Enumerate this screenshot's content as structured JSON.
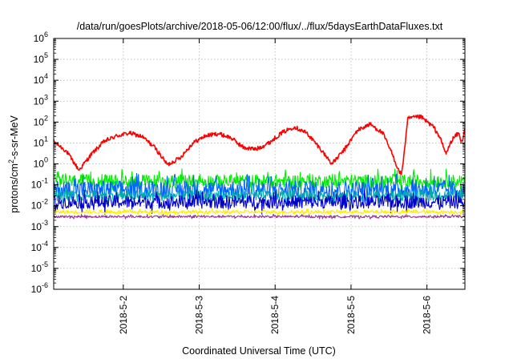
{
  "chart_data": {
    "type": "line",
    "title": "/data/run/goesPlots/archive/2018-05-06/12:00/flux/../flux/5daysEarthDataFluxes.txt",
    "xlabel": "Coordinated Universal Time (UTC)",
    "ylabel_parts": {
      "pre": "protons/cm",
      "sup": "2",
      "post": "-s-sr-MeV"
    },
    "y_scale": "log",
    "ylim": [
      1e-06,
      1000000.0
    ],
    "y_ticks": [
      {
        "value": 1e-06,
        "base": "10",
        "exp": "-6"
      },
      {
        "value": 1e-05,
        "base": "10",
        "exp": "-5"
      },
      {
        "value": 0.0001,
        "base": "10",
        "exp": "-4"
      },
      {
        "value": 0.001,
        "base": "10",
        "exp": "-3"
      },
      {
        "value": 0.01,
        "base": "10",
        "exp": "-2"
      },
      {
        "value": 0.1,
        "base": "10",
        "exp": "-1"
      },
      {
        "value": 1,
        "base": "10",
        "exp": "0"
      },
      {
        "value": 10,
        "base": "10",
        "exp": "1"
      },
      {
        "value": 100,
        "base": "10",
        "exp": "2"
      },
      {
        "value": 1000,
        "base": "10",
        "exp": "3"
      },
      {
        "value": 10000,
        "base": "10",
        "exp": "4"
      },
      {
        "value": 100000,
        "base": "10",
        "exp": "5"
      },
      {
        "value": 1000000,
        "base": "10",
        "exp": "6"
      }
    ],
    "xlim": [
      "2018-05-01 02:00",
      "2018-05-06 12:00"
    ],
    "x_ticks": [
      {
        "value": "2018-05-02 00:00",
        "label": "2018-5-2"
      },
      {
        "value": "2018-05-03 00:00",
        "label": "2018-5-3"
      },
      {
        "value": "2018-05-04 00:00",
        "label": "2018-5-4"
      },
      {
        "value": "2018-05-05 00:00",
        "label": "2018-5-5"
      },
      {
        "value": "2018-05-06 00:00",
        "label": "2018-5-6"
      }
    ],
    "grid": true,
    "series": [
      {
        "color": "#ff0000",
        "style": "smooth",
        "x": [
          "2018-05-01 02:00",
          "2018-05-01 06:00",
          "2018-05-01 10:00",
          "2018-05-01 14:00",
          "2018-05-01 18:00",
          "2018-05-01 22:00",
          "2018-05-02 02:00",
          "2018-05-02 06:00",
          "2018-05-02 10:00",
          "2018-05-02 14:00",
          "2018-05-02 18:00",
          "2018-05-02 22:00",
          "2018-05-03 02:00",
          "2018-05-03 06:00",
          "2018-05-03 10:00",
          "2018-05-03 14:00",
          "2018-05-03 18:00",
          "2018-05-03 22:00",
          "2018-05-04 02:00",
          "2018-05-04 06:00",
          "2018-05-04 10:00",
          "2018-05-04 14:00",
          "2018-05-04 18:00",
          "2018-05-04 22:00",
          "2018-05-05 02:00",
          "2018-05-05 06:00",
          "2018-05-05 10:00",
          "2018-05-05 13:00",
          "2018-05-05 15:00",
          "2018-05-05 16:00",
          "2018-05-05 18:00",
          "2018-05-05 22:00",
          "2018-05-06 02:00",
          "2018-05-06 04:00",
          "2018-05-06 06:00",
          "2018-05-06 08:00",
          "2018-05-06 10:00",
          "2018-05-06 11:00",
          "2018-05-06 12:00"
        ],
        "values": [
          12,
          4,
          0.5,
          3,
          12,
          22,
          30,
          20,
          6,
          0.9,
          2,
          10,
          22,
          28,
          18,
          6,
          5,
          10,
          30,
          60,
          30,
          6,
          1,
          5,
          40,
          80,
          30,
          3,
          0.5,
          0.3,
          150,
          180,
          60,
          20,
          3,
          15,
          30,
          10,
          50
        ],
        "noise": 0.1
      },
      {
        "color": "#00ee00",
        "style": "noise",
        "values": [
          0.15,
          0.15,
          0.15,
          0.15,
          0.15,
          0.15,
          0.15
        ],
        "noise": 0.45
      },
      {
        "color": "#0066ff",
        "style": "noise",
        "values": [
          0.06,
          0.06,
          0.06,
          0.06,
          0.06,
          0.06,
          0.06
        ],
        "noise": 0.6
      },
      {
        "color": "#00aaaa",
        "style": "noise",
        "values": [
          0.03,
          0.03,
          0.03,
          0.03,
          0.03,
          0.03,
          0.03
        ],
        "noise": 0.35
      },
      {
        "color": "#0000cc",
        "style": "noise",
        "values": [
          0.015,
          0.015,
          0.015,
          0.015,
          0.015,
          0.015,
          0.015
        ],
        "noise": 0.45
      },
      {
        "color": "#ffee00",
        "style": "noise",
        "values": [
          0.005,
          0.005,
          0.005,
          0.005,
          0.005,
          0.005,
          0.005
        ],
        "noise": 0.12
      },
      {
        "color": "#993399",
        "style": "noise",
        "values": [
          0.003,
          0.003,
          0.003,
          0.003,
          0.003,
          0.003,
          0.003
        ],
        "noise": 0.08
      }
    ]
  }
}
